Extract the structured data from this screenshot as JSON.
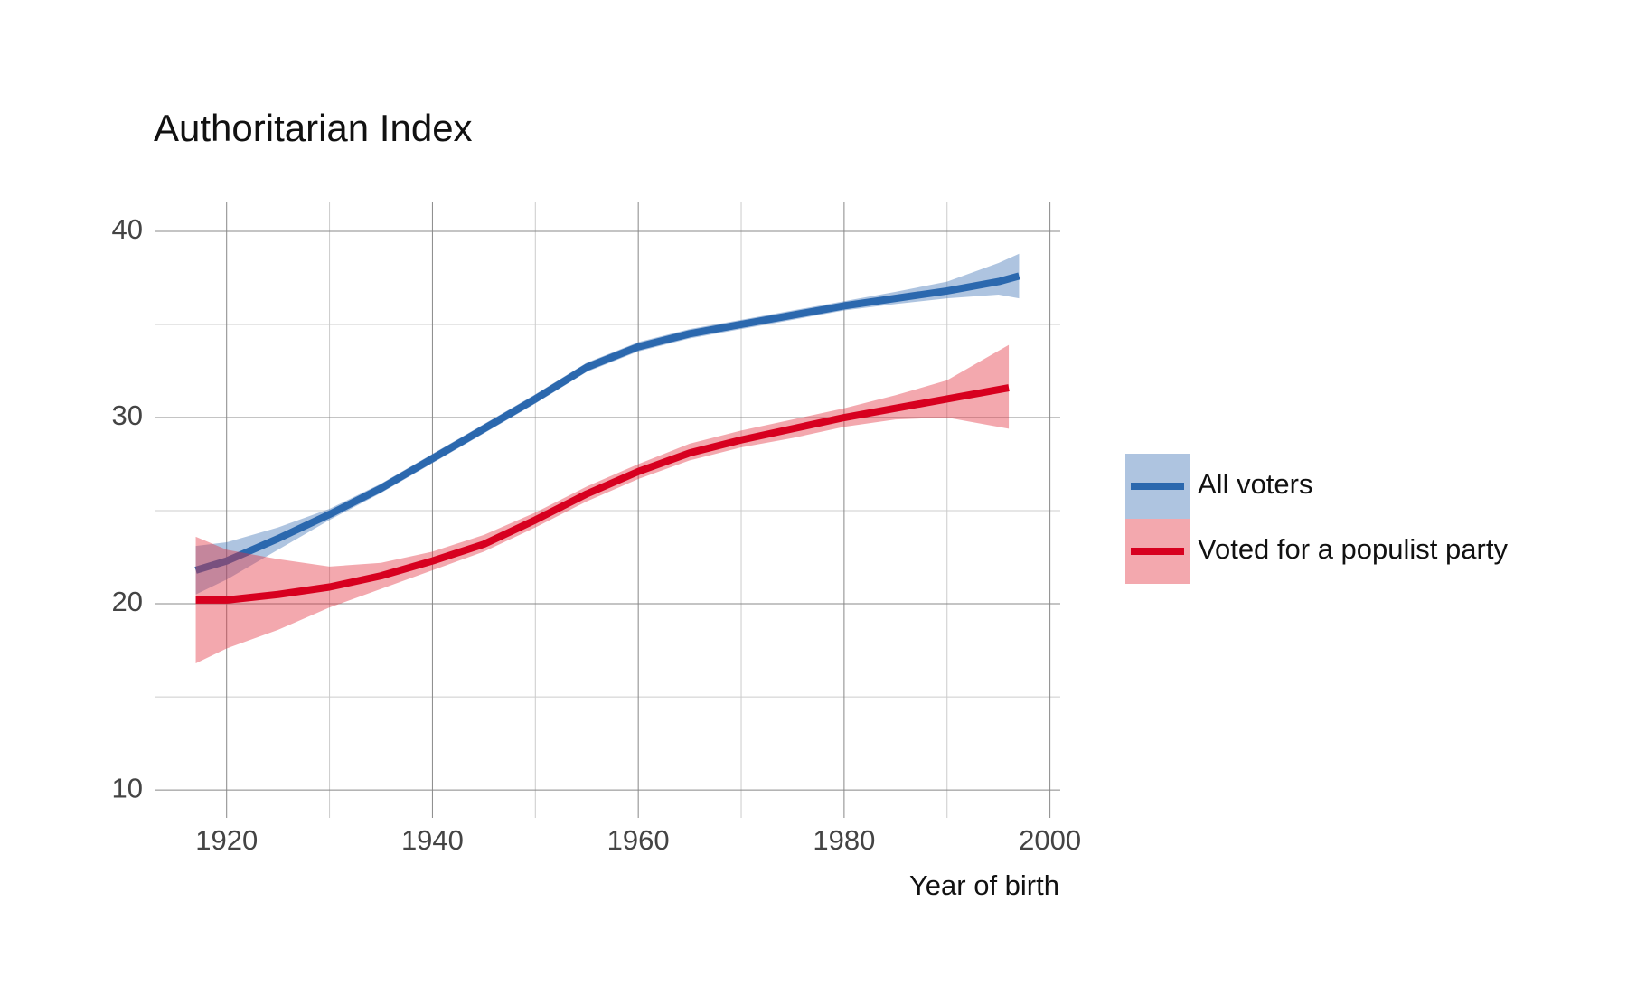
{
  "chart_data": {
    "type": "line",
    "title": "Authoritarian Index",
    "x_label": "Year of birth",
    "xlim": [
      1913,
      2001
    ],
    "xticks": [
      1920,
      1940,
      1960,
      1980,
      2000
    ],
    "minor_xticks": [
      1930,
      1950,
      1970,
      1990
    ],
    "ylim": [
      8.5,
      41.6
    ],
    "yticks": [
      10,
      20,
      30,
      40
    ],
    "minor_yticks": [
      15,
      25,
      35
    ],
    "grid": true,
    "legend": "right",
    "series": [
      {
        "name": "All voters",
        "color": "#2b68ae",
        "band_color": "#3f72b4",
        "x": [
          1917,
          1920,
          1925,
          1930,
          1935,
          1940,
          1945,
          1950,
          1955,
          1960,
          1965,
          1970,
          1975,
          1980,
          1985,
          1990,
          1995,
          1997
        ],
        "values": [
          21.8,
          22.3,
          23.5,
          24.8,
          26.2,
          27.8,
          29.4,
          31.0,
          32.7,
          33.8,
          34.5,
          35.0,
          35.5,
          36.0,
          36.4,
          36.8,
          37.3,
          37.6
        ],
        "lower": [
          20.5,
          21.3,
          22.9,
          24.5,
          25.95,
          27.55,
          29.15,
          30.75,
          32.45,
          33.55,
          34.25,
          34.75,
          35.25,
          35.75,
          36.1,
          36.4,
          36.6,
          36.4
        ],
        "upper": [
          23.1,
          23.3,
          24.1,
          25.1,
          26.45,
          28.05,
          29.65,
          31.25,
          32.95,
          34.05,
          34.75,
          35.25,
          35.75,
          36.25,
          36.75,
          37.3,
          38.3,
          38.8
        ]
      },
      {
        "name": "Voted for a populist party",
        "color": "#d7001f",
        "band_color": "#e2303f",
        "x": [
          1917,
          1920,
          1925,
          1930,
          1935,
          1940,
          1945,
          1950,
          1955,
          1960,
          1965,
          1970,
          1975,
          1980,
          1985,
          1990,
          1996
        ],
        "values": [
          20.2,
          20.2,
          20.5,
          20.9,
          21.5,
          22.3,
          23.2,
          24.5,
          25.9,
          27.1,
          28.1,
          28.8,
          29.4,
          30.0,
          30.5,
          31.0,
          31.6
        ],
        "lower": [
          16.8,
          17.6,
          18.6,
          19.8,
          20.8,
          21.8,
          22.8,
          24.1,
          25.5,
          26.7,
          27.7,
          28.4,
          28.9,
          29.5,
          29.9,
          30.0,
          29.4
        ],
        "upper": [
          23.6,
          22.9,
          22.4,
          22.0,
          22.2,
          22.8,
          23.7,
          24.9,
          26.3,
          27.5,
          28.6,
          29.3,
          29.9,
          30.5,
          31.2,
          32.0,
          33.9
        ]
      }
    ]
  }
}
